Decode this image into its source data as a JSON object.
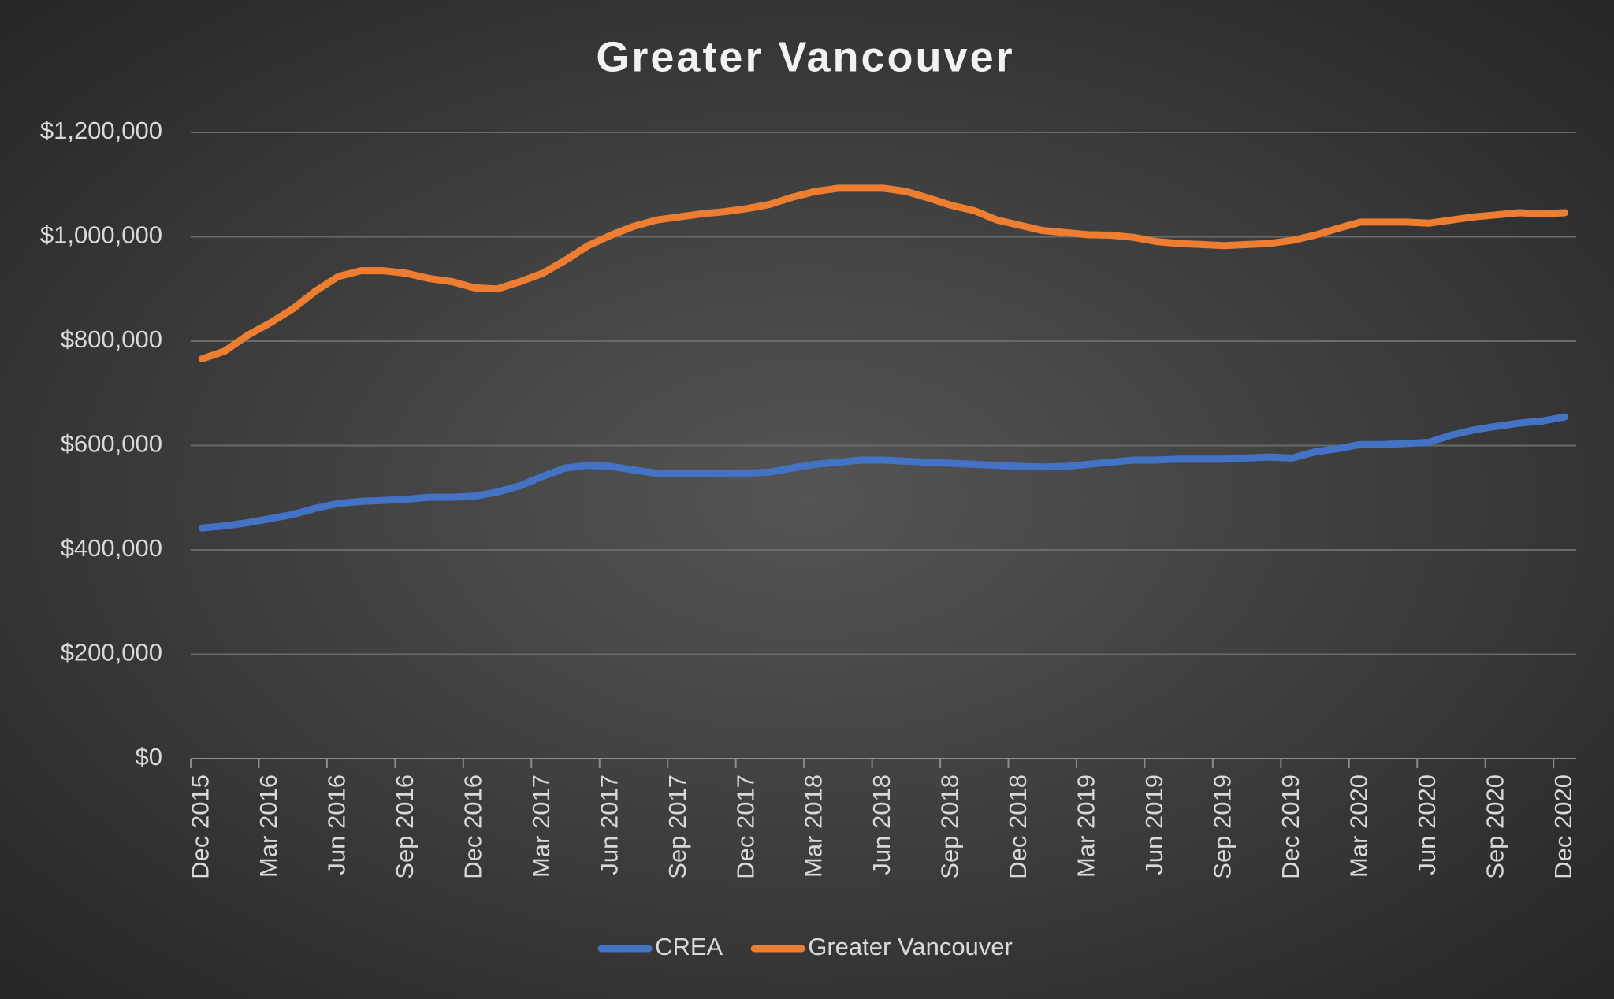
{
  "chart_data": {
    "type": "line",
    "title": "Greater Vancouver",
    "categories": [
      "Dec 2015",
      null,
      null,
      "Mar 2016",
      null,
      null,
      "Jun 2016",
      null,
      null,
      "Sep 2016",
      null,
      null,
      "Dec 2016",
      null,
      null,
      "Mar 2017",
      null,
      null,
      "Jun 2017",
      null,
      null,
      "Sep 2017",
      null,
      null,
      "Dec 2017",
      null,
      null,
      "Mar 2018",
      null,
      null,
      "Jun 2018",
      null,
      null,
      "Sep 2018",
      null,
      null,
      "Dec 2018",
      null,
      null,
      "Mar 2019",
      null,
      null,
      "Jun 2019",
      null,
      null,
      "Sep 2019",
      null,
      null,
      "Dec 2019",
      null,
      null,
      "Mar 2020",
      null,
      null,
      "Jun 2020",
      null,
      null,
      "Sep 2020",
      null,
      null,
      "Dec 2020"
    ],
    "series": [
      {
        "name": "CREA",
        "color": "#4472c4",
        "values": [
          442000,
          446000,
          452000,
          460000,
          468000,
          480000,
          489000,
          493000,
          495000,
          497000,
          501000,
          501000,
          503000,
          511000,
          523000,
          541000,
          557000,
          562000,
          560000,
          553000,
          547000,
          547000,
          547000,
          547000,
          547000,
          549000,
          557000,
          564000,
          568000,
          572000,
          572000,
          570000,
          568000,
          566000,
          564000,
          562000,
          560000,
          559000,
          560000,
          564000,
          568000,
          572000,
          572000,
          574000,
          574000,
          574000,
          576000,
          578000,
          576000,
          588000,
          594000,
          602000,
          602000,
          604000,
          606000,
          620000,
          630000,
          637000,
          643000,
          647000,
          655000
        ]
      },
      {
        "name": "Greater Vancouver",
        "color": "#ed7d31",
        "values": [
          766000,
          781000,
          811000,
          835000,
          862000,
          896000,
          924000,
          935000,
          935000,
          930000,
          920000,
          914000,
          902000,
          900000,
          914000,
          930000,
          955000,
          983000,
          1003000,
          1020000,
          1032000,
          1038000,
          1044000,
          1048000,
          1054000,
          1062000,
          1076000,
          1087000,
          1093000,
          1093000,
          1093000,
          1087000,
          1074000,
          1060000,
          1050000,
          1032000,
          1022000,
          1012000,
          1008000,
          1004000,
          1003000,
          999000,
          991000,
          987000,
          985000,
          983000,
          985000,
          987000,
          993000,
          1003000,
          1016000,
          1028000,
          1028000,
          1028000,
          1026000,
          1032000,
          1038000,
          1042000,
          1046000,
          1044000,
          1046000
        ]
      }
    ],
    "ylim": [
      0,
      1200000
    ],
    "yticks": [
      {
        "value": 0,
        "label": "$0"
      },
      {
        "value": 200000,
        "label": "$200,000"
      },
      {
        "value": 400000,
        "label": "$400,000"
      },
      {
        "value": 600000,
        "label": "$600,000"
      },
      {
        "value": 800000,
        "label": "$800,000"
      },
      {
        "value": 1000000,
        "label": "$1,000,000"
      },
      {
        "value": 1200000,
        "label": "$1,200,000"
      }
    ],
    "grid": true,
    "legend": "bottom"
  }
}
